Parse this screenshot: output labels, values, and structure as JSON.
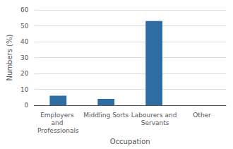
{
  "chart_data": {
    "type": "bar",
    "categories": [
      "Employers and Professionals",
      "Middling Sorts",
      "Labourers and Servants",
      "Other"
    ],
    "values": [
      6,
      4,
      53,
      0
    ],
    "color": "#2e6da4",
    "xlabel": "Occupation",
    "ylabel": "Numbers (%)",
    "ylim": [
      0,
      60
    ],
    "yticks": [
      0,
      10,
      20,
      30,
      40,
      50,
      60
    ],
    "grid": true
  }
}
